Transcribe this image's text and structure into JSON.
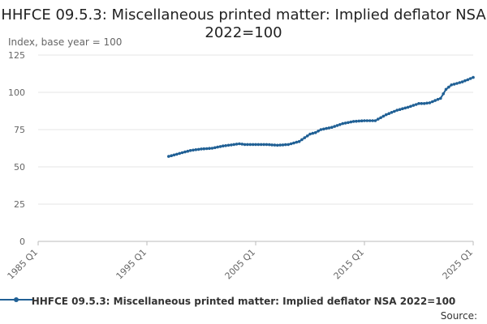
{
  "chart_data": {
    "type": "line",
    "title": "HHFCE 09.5.3: Miscellaneous printed matter: Implied deflator NSA 2022=100",
    "ylabel": "Index, base year = 100",
    "x_tick_labels": [
      "1985 Q1",
      "1995 Q1",
      "2005 Q1",
      "2015 Q1",
      "2025 Q1"
    ],
    "x_ticks_year": [
      1985,
      1995,
      2005,
      2015,
      2025
    ],
    "y_ticks": [
      0,
      25,
      50,
      75,
      100,
      125
    ],
    "xlim": [
      1985,
      2025
    ],
    "ylim": [
      0,
      125
    ],
    "grid": "horizontal",
    "legend_position": "bottom",
    "source_label": "Source:",
    "series": [
      {
        "name": "HHFCE 09.5.3: Miscellaneous printed matter: Implied deflator NSA 2022=100",
        "color": "#206095",
        "x": [
          1997.0,
          1998.0,
          1999.0,
          2000.0,
          2001.0,
          2002.0,
          2003.0,
          2003.5,
          2004.0,
          2005.0,
          2006.0,
          2007.0,
          2008.0,
          2009.0,
          2010.0,
          2010.5,
          2011.0,
          2012.0,
          2013.0,
          2014.0,
          2015.0,
          2016.0,
          2017.0,
          2018.0,
          2019.0,
          2020.0,
          2020.5,
          2021.0,
          2022.0,
          2022.5,
          2023.0,
          2024.0,
          2025.0
        ],
        "y": [
          57,
          59,
          61,
          62,
          62.5,
          64,
          65,
          65.5,
          65,
          65,
          65,
          64.5,
          65,
          67,
          72,
          73,
          75,
          76.5,
          79,
          80.5,
          81,
          81,
          85,
          88,
          90,
          92.5,
          92.5,
          93,
          96,
          102,
          105,
          107,
          110
        ]
      }
    ]
  }
}
